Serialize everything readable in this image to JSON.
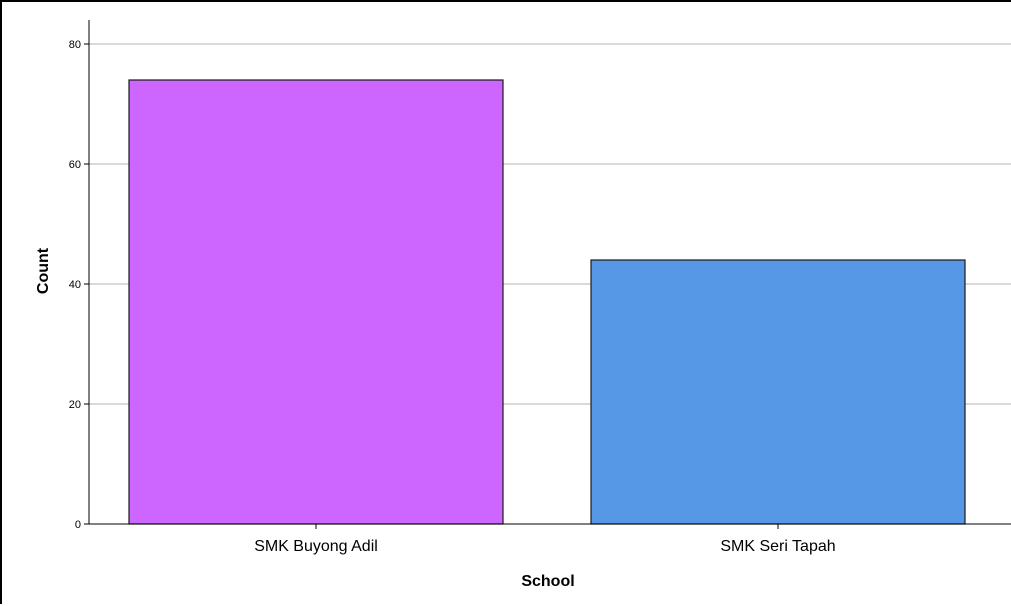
{
  "chart_data": {
    "type": "bar",
    "title": "",
    "xlabel": "School",
    "ylabel": "Count",
    "categories": [
      "SMK Buyong Adil",
      "SMK Seri Tapah"
    ],
    "values": [
      74,
      44
    ],
    "colors": [
      "#cc66ff",
      "#5698e6"
    ],
    "bar_edge_color": "#1a1a1a",
    "ylim": [
      0,
      84
    ],
    "yticks": [
      0,
      20,
      40,
      60,
      80
    ],
    "grid": true,
    "grid_axis": "y",
    "grid_color": "#b3b3b3",
    "legend": "none"
  }
}
